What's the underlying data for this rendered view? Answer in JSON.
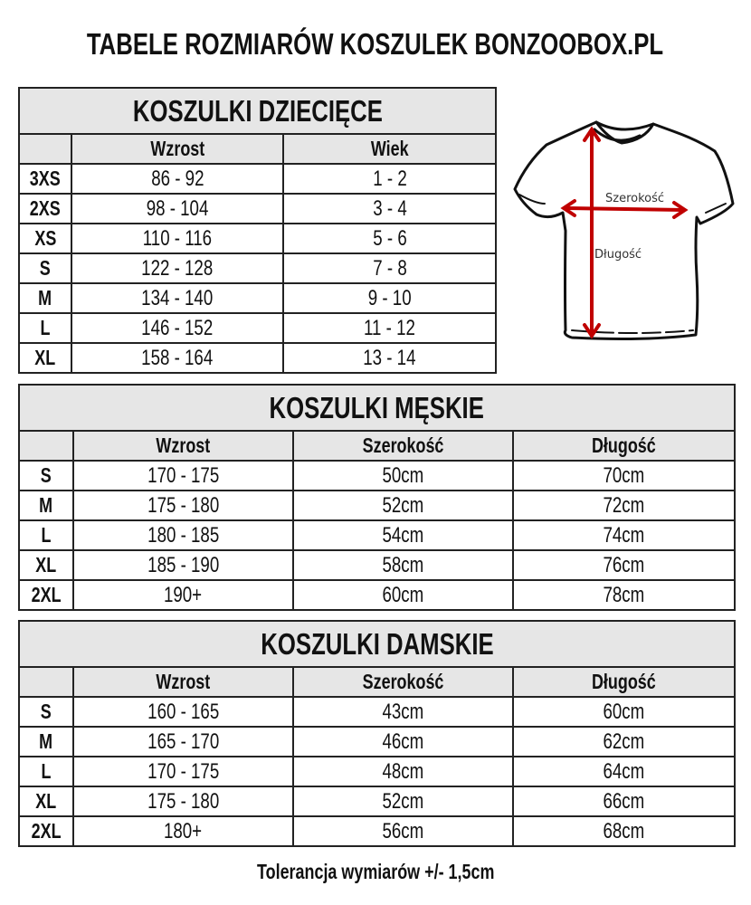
{
  "title": "TABELE ROZMIARÓW KOSZULEK BONZOOBOX.PL",
  "kids": {
    "title": "KOSZULKI DZIECIĘCE",
    "headers": [
      "",
      "Wzrost",
      "Wiek"
    ],
    "rows": [
      [
        "3XS",
        "86 - 92",
        "1 - 2"
      ],
      [
        "2XS",
        "98 - 104",
        "3 - 4"
      ],
      [
        "XS",
        "110 - 116",
        "5 - 6"
      ],
      [
        "S",
        "122 - 128",
        "7 - 8"
      ],
      [
        "M",
        "134 - 140",
        "9 - 10"
      ],
      [
        "L",
        "146 - 152",
        "11 - 12"
      ],
      [
        "XL",
        "158 - 164",
        "13 - 14"
      ]
    ]
  },
  "men": {
    "title": "KOSZULKI MĘSKIE",
    "headers": [
      "",
      "Wzrost",
      "Szerokość",
      "Długość"
    ],
    "rows": [
      [
        "S",
        "170 - 175",
        "50cm",
        "70cm"
      ],
      [
        "M",
        "175 - 180",
        "52cm",
        "72cm"
      ],
      [
        "L",
        "180 - 185",
        "54cm",
        "74cm"
      ],
      [
        "XL",
        "185 - 190",
        "58cm",
        "76cm"
      ],
      [
        "2XL",
        "190+",
        "60cm",
        "78cm"
      ]
    ]
  },
  "women": {
    "title": "KOSZULKI DAMSKIE",
    "headers": [
      "",
      "Wzrost",
      "Szerokość",
      "Długość"
    ],
    "rows": [
      [
        "S",
        "160 - 165",
        "43cm",
        "60cm"
      ],
      [
        "M",
        "165 - 170",
        "46cm",
        "62cm"
      ],
      [
        "L",
        "170 - 175",
        "48cm",
        "64cm"
      ],
      [
        "XL",
        "175 - 180",
        "52cm",
        "66cm"
      ],
      [
        "2XL",
        "180+",
        "56cm",
        "68cm"
      ]
    ]
  },
  "diagram": {
    "width_label": "Szerokość",
    "length_label": "Długość",
    "arrow_color": "#c00000"
  },
  "footer": "Tolerancja wymiarów +/- 1,5cm"
}
